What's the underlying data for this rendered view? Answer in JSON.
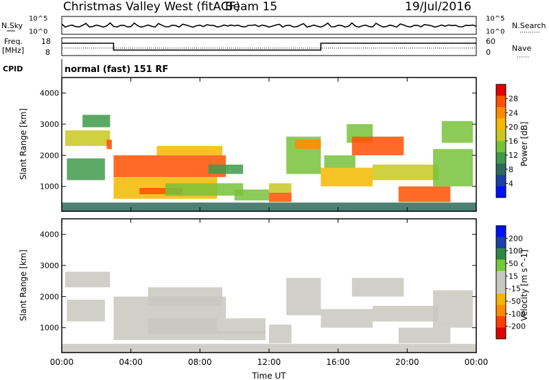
{
  "header": {
    "radar": "Christmas Valley West (fitACF)",
    "beam": "Beam 15",
    "date": "19/Jul/2016"
  },
  "summary_panels": {
    "nsky_label": "N.Sky",
    "nsearch_label": "N.Search",
    "nsky_ticks": [
      "10^5",
      "10^0"
    ],
    "nsearch_ticks": [
      "10^5",
      "10^0"
    ],
    "freq_label_1": "Freq.",
    "freq_label_2": "[MHz]",
    "freq_ticks": [
      "18",
      "8"
    ],
    "nave_label": "Nave",
    "nave_ticks": [
      "60",
      "0"
    ],
    "cpid_label": "CPID",
    "cpid_value": "normal (fast) 151 RF"
  },
  "colors": {
    "power_scale": [
      "#0010ff",
      "#1e3ea8",
      "#2e6a5a",
      "#3f9a4a",
      "#78c23a",
      "#c8c820",
      "#f5b800",
      "#ff8c00",
      "#ff5000",
      "#e00000"
    ],
    "velocity_scale": [
      "#e00000",
      "#ff4000",
      "#ff8c00",
      "#f5b400",
      "#c8c8c0",
      "#c8c8c0",
      "#78c83a",
      "#2e8a40",
      "#1e3ea8",
      "#0010ff"
    ],
    "axis": "#000000",
    "frame": "#000000"
  },
  "chart_data": [
    {
      "type": "heatmap",
      "name": "power",
      "ylabel": "Slant Range [km]",
      "xlabel": "",
      "x_ticks": [
        "00:00",
        "04:00",
        "08:00",
        "12:00",
        "16:00",
        "20:00",
        "00:00"
      ],
      "y_ticks": [
        1000,
        2000,
        3000,
        4000
      ],
      "ylim": [
        200,
        4500
      ],
      "xlim_hours": [
        0,
        24
      ],
      "colorbar_label": "Power [dB]",
      "colorbar_ticks": [
        4,
        8,
        12,
        16,
        20,
        24,
        28
      ],
      "colorbar_range": [
        0,
        30
      ],
      "regions": [
        {
          "t": [
            0.2,
            2.8
          ],
          "r": [
            2300,
            2800
          ],
          "v": 16
        },
        {
          "t": [
            0.3,
            2.5
          ],
          "r": [
            1200,
            1900
          ],
          "v": 10
        },
        {
          "t": [
            1.2,
            2.8
          ],
          "r": [
            2900,
            3300
          ],
          "v": 10
        },
        {
          "t": [
            2.6,
            2.9
          ],
          "r": [
            2200,
            2500
          ],
          "v": 26
        },
        {
          "t": [
            3.0,
            9.5
          ],
          "r": [
            1300,
            2000
          ],
          "v": 25
        },
        {
          "t": [
            5.5,
            9.3
          ],
          "r": [
            2000,
            2300
          ],
          "v": 18
        },
        {
          "t": [
            3.0,
            9.0
          ],
          "r": [
            600,
            1300
          ],
          "v": 18
        },
        {
          "t": [
            4.5,
            7.0
          ],
          "r": [
            750,
            950
          ],
          "v": 24
        },
        {
          "t": [
            6.0,
            10.5
          ],
          "r": [
            700,
            1100
          ],
          "v": 13
        },
        {
          "t": [
            8.5,
            10.5
          ],
          "r": [
            1400,
            1700
          ],
          "v": 10
        },
        {
          "t": [
            10.0,
            12.0
          ],
          "r": [
            550,
            900
          ],
          "v": 14
        },
        {
          "t": [
            12.0,
            13.3
          ],
          "r": [
            500,
            800
          ],
          "v": 26
        },
        {
          "t": [
            12.0,
            13.3
          ],
          "r": [
            800,
            1100
          ],
          "v": 15
        },
        {
          "t": [
            13.0,
            15.0
          ],
          "r": [
            1400,
            2600
          ],
          "v": 14
        },
        {
          "t": [
            13.5,
            15.0
          ],
          "r": [
            2200,
            2500
          ],
          "v": 22
        },
        {
          "t": [
            15.0,
            18.0
          ],
          "r": [
            1000,
            1600
          ],
          "v": 18
        },
        {
          "t": [
            15.2,
            17.0
          ],
          "r": [
            1600,
            2000
          ],
          "v": 12
        },
        {
          "t": [
            16.5,
            18.0
          ],
          "r": [
            2400,
            3000
          ],
          "v": 12
        },
        {
          "t": [
            16.8,
            19.8
          ],
          "r": [
            2000,
            2600
          ],
          "v": 25
        },
        {
          "t": [
            18.0,
            21.8
          ],
          "r": [
            1200,
            1700
          ],
          "v": 15
        },
        {
          "t": [
            19.5,
            22.5
          ],
          "r": [
            500,
            1000
          ],
          "v": 26
        },
        {
          "t": [
            21.5,
            23.8
          ],
          "r": [
            1000,
            2200
          ],
          "v": 14
        },
        {
          "t": [
            22.0,
            23.8
          ],
          "r": [
            2400,
            3100
          ],
          "v": 12
        },
        {
          "t": [
            0.0,
            24.0
          ],
          "r": [
            200,
            480
          ],
          "v": 8
        }
      ]
    },
    {
      "type": "heatmap",
      "name": "velocity",
      "ylabel": "Slant Range [km]",
      "xlabel": "Time UT",
      "x_ticks": [
        "00:00",
        "04:00",
        "08:00",
        "12:00",
        "16:00",
        "20:00",
        "00:00"
      ],
      "y_ticks": [
        1000,
        2000,
        3000,
        4000
      ],
      "ylim": [
        200,
        4500
      ],
      "xlim_hours": [
        0,
        24
      ],
      "colorbar_label": "Velocity [m s^-1]",
      "colorbar_ticks": [
        "200",
        "100",
        "50",
        "15",
        "-15",
        "-50",
        "-100",
        "-200"
      ],
      "colorbar_range": [
        -250,
        250
      ],
      "regions": [
        {
          "t": [
            0.2,
            2.8
          ],
          "r": [
            2300,
            2800
          ],
          "v": 0
        },
        {
          "t": [
            0.3,
            2.5
          ],
          "r": [
            1200,
            1900
          ],
          "v": 0
        },
        {
          "t": [
            3.0,
            9.5
          ],
          "r": [
            1300,
            2000
          ],
          "v": 0
        },
        {
          "t": [
            5.0,
            9.3
          ],
          "r": [
            1700,
            2300
          ],
          "v": -40
        },
        {
          "t": [
            3.0,
            9.0
          ],
          "r": [
            600,
            1300
          ],
          "v": 0
        },
        {
          "t": [
            5.0,
            11.8
          ],
          "r": [
            800,
            1300
          ],
          "v": -40
        },
        {
          "t": [
            9.0,
            11.8
          ],
          "r": [
            600,
            900
          ],
          "v": -45
        },
        {
          "t": [
            12.0,
            13.3
          ],
          "r": [
            500,
            1100
          ],
          "v": 0
        },
        {
          "t": [
            13.0,
            15.0
          ],
          "r": [
            1400,
            2600
          ],
          "v": 5
        },
        {
          "t": [
            15.0,
            18.0
          ],
          "r": [
            1000,
            1600
          ],
          "v": 0
        },
        {
          "t": [
            16.8,
            19.8
          ],
          "r": [
            2000,
            2600
          ],
          "v": 0
        },
        {
          "t": [
            18.0,
            21.8
          ],
          "r": [
            1200,
            1700
          ],
          "v": 0
        },
        {
          "t": [
            19.5,
            22.5
          ],
          "r": [
            500,
            1000
          ],
          "v": 0
        },
        {
          "t": [
            21.5,
            23.8
          ],
          "r": [
            1000,
            2200
          ],
          "v": 0
        },
        {
          "t": [
            0.0,
            24.0
          ],
          "r": [
            200,
            480
          ],
          "v": 40
        }
      ]
    }
  ]
}
